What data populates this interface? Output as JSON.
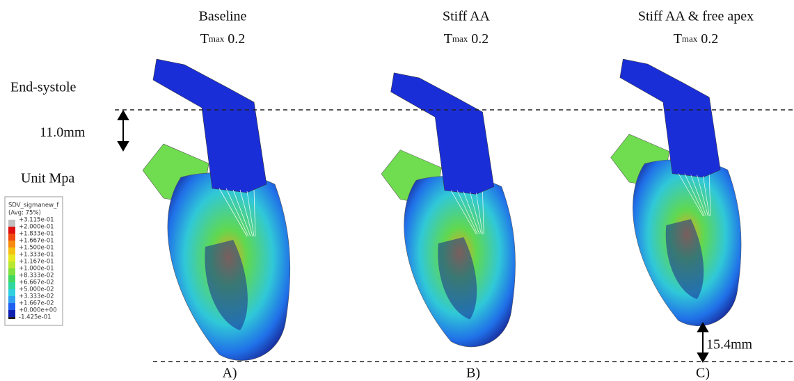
{
  "panels": [
    {
      "title": "Baseline",
      "tmax": {
        "symbol": "T",
        "sub": "max",
        "value": "0.2"
      },
      "label": "A)"
    },
    {
      "title": "Stiff AA",
      "tmax": {
        "symbol": "T",
        "sub": "max",
        "value": "0.2"
      },
      "label": "B)"
    },
    {
      "title": "Stiff AA & free apex",
      "tmax": {
        "symbol": "T",
        "sub": "max",
        "value": "0.2"
      },
      "label": "C)"
    }
  ],
  "annotations": {
    "phase": "End-systole",
    "top_shift": "11.0mm",
    "unit": "Unit Mpa",
    "apex_shift": "15.4mm"
  },
  "legend": {
    "title": "SDV_sigmanew_f",
    "subtitle": "(Avg: 75%)",
    "entries": [
      "+3.115e-01",
      "+2.000e-01",
      "+1.833e-01",
      "+1.667e-01",
      "+1.500e-01",
      "+1.333e-01",
      "+1.167e-01",
      "+1.000e-01",
      "+8.333e-02",
      "+6.667e-02",
      "+5.000e-02",
      "+3.333e-02",
      "+1.667e-02",
      "+0.000e+00",
      "-1.425e-01"
    ],
    "colors": [
      "#c0c0c0",
      "#e01010",
      "#f04a10",
      "#f78a10",
      "#f5c010",
      "#e8e820",
      "#b8e830",
      "#80e040",
      "#40d860",
      "#30d8a0",
      "#30d0e0",
      "#30a0f0",
      "#2060f0",
      "#1020b0"
    ]
  }
}
